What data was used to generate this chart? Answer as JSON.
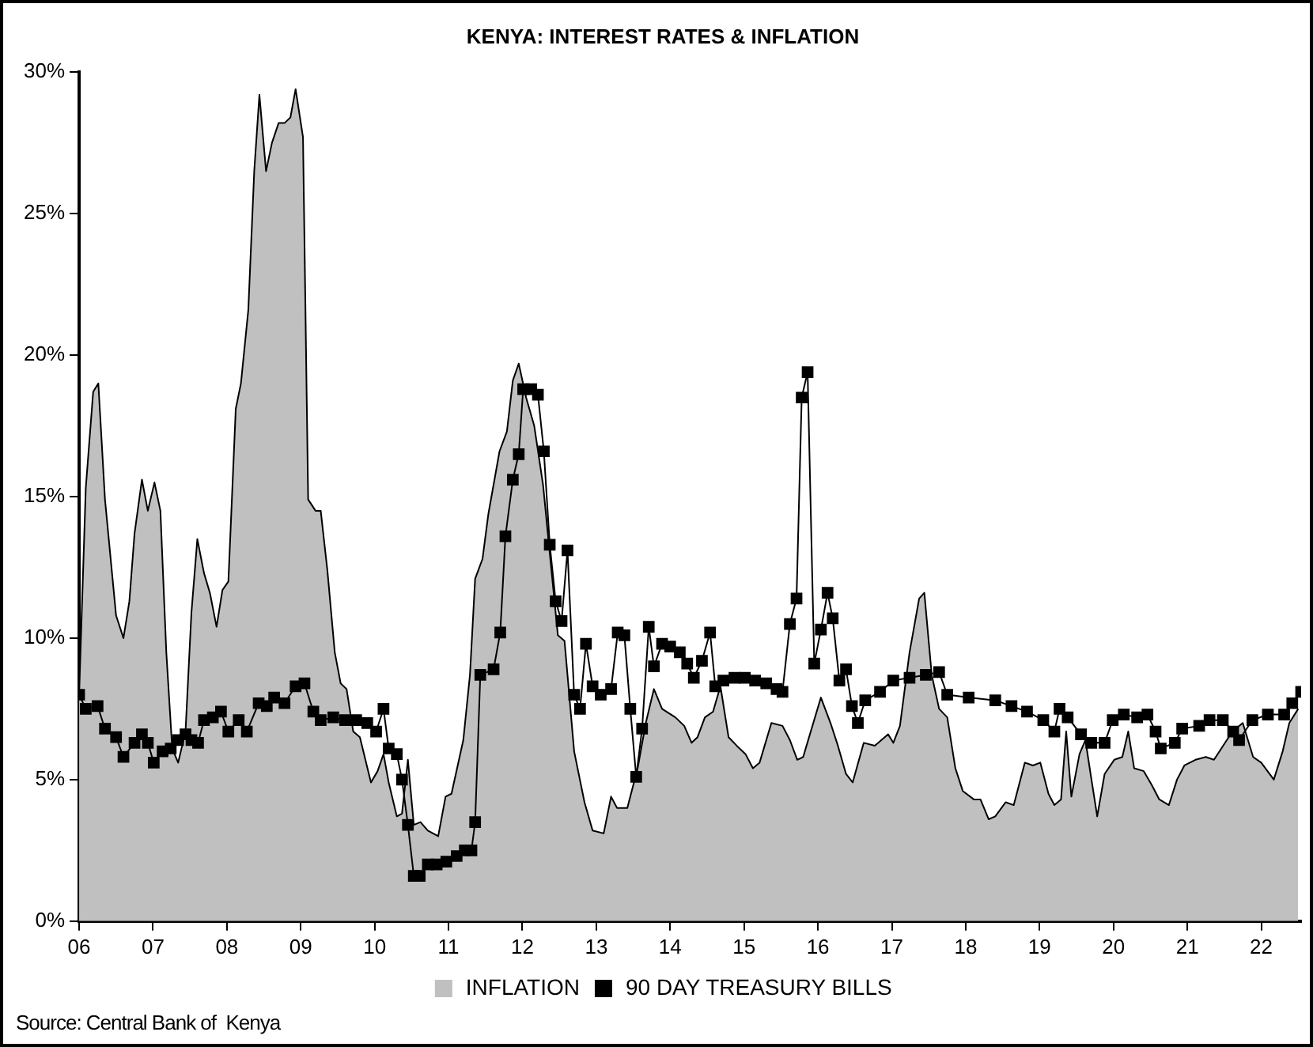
{
  "chart_data": {
    "type": "line",
    "title": "KENYA: INTEREST RATES & INFLATION",
    "xlim": [
      2006,
      2022.54
    ],
    "xticks": [
      {
        "value": 2006,
        "label": "06"
      },
      {
        "value": 2007,
        "label": "07"
      },
      {
        "value": 2008,
        "label": "08"
      },
      {
        "value": 2009,
        "label": "09"
      },
      {
        "value": 2010,
        "label": "10"
      },
      {
        "value": 2011,
        "label": "11"
      },
      {
        "value": 2012,
        "label": "12"
      },
      {
        "value": 2013,
        "label": "13"
      },
      {
        "value": 2014,
        "label": "14"
      },
      {
        "value": 2015,
        "label": "15"
      },
      {
        "value": 2016,
        "label": "16"
      },
      {
        "value": 2017,
        "label": "17"
      },
      {
        "value": 2018,
        "label": "18"
      },
      {
        "value": 2019,
        "label": "19"
      },
      {
        "value": 2020,
        "label": "20"
      },
      {
        "value": 2021,
        "label": "21"
      },
      {
        "value": 2022,
        "label": "22"
      }
    ],
    "ylim": [
      0,
      30
    ],
    "yticks": [
      {
        "value": 0,
        "label": "0%"
      },
      {
        "value": 5,
        "label": "5%"
      },
      {
        "value": 10,
        "label": "10%"
      },
      {
        "value": 15,
        "label": "15%"
      },
      {
        "value": 20,
        "label": "20%"
      },
      {
        "value": 25,
        "label": "25%"
      },
      {
        "value": 30,
        "label": "30%"
      }
    ],
    "grid": false,
    "legend": "bottom",
    "annotations": [
      "Source: Central Bank of  Kenya"
    ],
    "series": [
      {
        "name": "INFLATION",
        "type": "area",
        "color": "#c0c0c0",
        "marker": "none",
        "x": [
          2006.0,
          2006.09,
          2006.19,
          2006.26,
          2006.35,
          2006.5,
          2006.6,
          2006.68,
          2006.75,
          2006.85,
          2006.93,
          2007.02,
          2007.1,
          2007.18,
          2007.26,
          2007.34,
          2007.44,
          2007.52,
          2007.6,
          2007.69,
          2007.77,
          2007.86,
          2007.94,
          2008.02,
          2008.12,
          2008.19,
          2008.29,
          2008.37,
          2008.44,
          2008.53,
          2008.61,
          2008.7,
          2008.78,
          2008.86,
          2008.93,
          2009.03,
          2009.1,
          2009.2,
          2009.27,
          2009.36,
          2009.46,
          2009.54,
          2009.62,
          2009.71,
          2009.8,
          2009.95,
          2010.04,
          2010.12,
          2010.19,
          2010.3,
          2010.37,
          2010.45,
          2010.53,
          2010.62,
          2010.72,
          2010.86,
          2010.96,
          2011.04,
          2011.2,
          2011.29,
          2011.36,
          2011.46,
          2011.54,
          2011.69,
          2011.79,
          2011.87,
          2011.95,
          2012.05,
          2012.16,
          2012.28,
          2012.37,
          2012.48,
          2012.57,
          2012.7,
          2012.84,
          2012.95,
          2013.1,
          2013.2,
          2013.28,
          2013.42,
          2013.56,
          2013.67,
          2013.78,
          2013.89,
          2014.07,
          2014.19,
          2014.29,
          2014.37,
          2014.47,
          2014.58,
          2014.68,
          2014.79,
          2014.9,
          2015.02,
          2015.12,
          2015.21,
          2015.37,
          2015.52,
          2015.62,
          2015.72,
          2015.8,
          2016.04,
          2016.17,
          2016.27,
          2016.38,
          2016.47,
          2016.62,
          2016.77,
          2016.95,
          2017.02,
          2017.11,
          2017.24,
          2017.37,
          2017.44,
          2017.54,
          2017.64,
          2017.75,
          2017.86,
          2017.96,
          2018.11,
          2018.2,
          2018.31,
          2018.4,
          2018.54,
          2018.65,
          2018.8,
          2018.91,
          2019.01,
          2019.12,
          2019.2,
          2019.29,
          2019.36,
          2019.43,
          2019.54,
          2019.62,
          2019.69,
          2019.78,
          2019.88,
          2020.01,
          2020.12,
          2020.2,
          2020.28,
          2020.41,
          2020.52,
          2020.62,
          2020.75,
          2020.86,
          2020.96,
          2021.11,
          2021.25,
          2021.36,
          2021.46,
          2021.61,
          2021.75,
          2021.89,
          2022.0,
          2022.17,
          2022.29,
          2022.38,
          2022.5
        ],
        "values": [
          8.0,
          15.3,
          18.7,
          19.0,
          14.9,
          10.8,
          10.0,
          11.3,
          13.7,
          15.6,
          14.5,
          15.5,
          14.5,
          9.5,
          6.1,
          5.6,
          6.7,
          10.9,
          13.5,
          12.3,
          11.6,
          10.4,
          11.7,
          12.0,
          18.1,
          19.0,
          21.6,
          26.5,
          29.2,
          26.5,
          27.5,
          28.2,
          28.2,
          28.4,
          29.4,
          27.7,
          14.9,
          14.5,
          14.5,
          12.4,
          9.5,
          8.4,
          8.2,
          6.7,
          6.5,
          4.9,
          5.3,
          5.9,
          4.9,
          3.7,
          3.8,
          5.7,
          3.4,
          3.5,
          3.2,
          3.0,
          4.4,
          4.5,
          6.4,
          8.7,
          12.1,
          12.8,
          14.4,
          16.6,
          17.3,
          19.1,
          19.7,
          18.5,
          17.5,
          15.4,
          13.0,
          10.1,
          9.9,
          6.0,
          4.2,
          3.2,
          3.1,
          4.4,
          4.0,
          4.0,
          5.4,
          7.0,
          8.2,
          7.5,
          7.2,
          6.9,
          6.3,
          6.5,
          7.2,
          7.4,
          8.3,
          6.5,
          6.2,
          5.9,
          5.4,
          5.6,
          7.0,
          6.9,
          6.4,
          5.7,
          5.8,
          7.9,
          7.0,
          6.2,
          5.2,
          4.9,
          6.3,
          6.2,
          6.6,
          6.3,
          6.9,
          9.5,
          11.4,
          11.6,
          8.7,
          7.5,
          7.2,
          5.4,
          4.6,
          4.3,
          4.3,
          3.6,
          3.7,
          4.2,
          4.1,
          5.6,
          5.5,
          5.6,
          4.5,
          4.1,
          4.3,
          6.7,
          4.4,
          5.9,
          6.4,
          5.2,
          3.7,
          5.2,
          5.7,
          5.8,
          6.7,
          5.4,
          5.3,
          4.8,
          4.3,
          4.1,
          5.0,
          5.5,
          5.7,
          5.8,
          5.7,
          6.1,
          6.7,
          7.0,
          5.8,
          5.6,
          5.0,
          6.0,
          7.0,
          7.5
        ]
      },
      {
        "name": "90 DAY TREASURY BILLS",
        "type": "line",
        "color": "#000000",
        "marker": "square",
        "x": [
          2006.0,
          2006.09,
          2006.25,
          2006.35,
          2006.5,
          2006.6,
          2006.75,
          2006.85,
          2006.93,
          2007.01,
          2007.13,
          2007.24,
          2007.34,
          2007.44,
          2007.52,
          2007.61,
          2007.69,
          2007.81,
          2007.92,
          2008.02,
          2008.16,
          2008.27,
          2008.43,
          2008.54,
          2008.64,
          2008.78,
          2008.93,
          2009.05,
          2009.17,
          2009.27,
          2009.44,
          2009.6,
          2009.75,
          2009.9,
          2010.02,
          2010.12,
          2010.19,
          2010.3,
          2010.37,
          2010.45,
          2010.53,
          2010.61,
          2010.72,
          2010.84,
          2010.97,
          2011.11,
          2011.22,
          2011.31,
          2011.36,
          2011.43,
          2011.61,
          2011.7,
          2011.77,
          2011.87,
          2011.95,
          2012.01,
          2012.12,
          2012.21,
          2012.29,
          2012.37,
          2012.45,
          2012.53,
          2012.61,
          2012.7,
          2012.78,
          2012.86,
          2012.95,
          2013.06,
          2013.2,
          2013.29,
          2013.38,
          2013.46,
          2013.54,
          2013.62,
          2013.71,
          2013.78,
          2013.89,
          2014.0,
          2014.13,
          2014.23,
          2014.32,
          2014.43,
          2014.54,
          2014.61,
          2014.72,
          2014.87,
          2015.01,
          2015.15,
          2015.3,
          2015.44,
          2015.52,
          2015.62,
          2015.71,
          2015.78,
          2015.86,
          2015.95,
          2016.04,
          2016.13,
          2016.2,
          2016.29,
          2016.38,
          2016.46,
          2016.54,
          2016.64,
          2016.84,
          2017.02,
          2017.24,
          2017.46,
          2017.64,
          2017.75,
          2018.04,
          2018.4,
          2018.62,
          2018.83,
          2019.05,
          2019.2,
          2019.27,
          2019.38,
          2019.56,
          2019.7,
          2019.88,
          2019.99,
          2020.14,
          2020.32,
          2020.46,
          2020.57,
          2020.64,
          2020.83,
          2020.93,
          2021.16,
          2021.3,
          2021.48,
          2021.62,
          2021.7,
          2021.88,
          2022.09,
          2022.31,
          2022.42,
          2022.54
        ],
        "values": [
          8.0,
          7.5,
          7.6,
          6.8,
          6.5,
          5.8,
          6.3,
          6.6,
          6.3,
          5.6,
          6.0,
          6.1,
          6.4,
          6.6,
          6.4,
          6.3,
          7.1,
          7.2,
          7.4,
          6.7,
          7.1,
          6.7,
          7.7,
          7.6,
          7.9,
          7.7,
          8.3,
          8.4,
          7.4,
          7.1,
          7.2,
          7.1,
          7.1,
          7.0,
          6.7,
          7.5,
          6.1,
          5.9,
          5.0,
          3.4,
          1.6,
          1.6,
          2.0,
          2.0,
          2.1,
          2.3,
          2.5,
          2.5,
          3.5,
          8.7,
          8.9,
          10.2,
          13.6,
          15.6,
          16.5,
          18.8,
          18.8,
          18.6,
          16.6,
          13.3,
          11.3,
          10.6,
          13.1,
          8.0,
          7.5,
          9.8,
          8.3,
          8.0,
          8.2,
          10.2,
          10.1,
          7.5,
          5.1,
          6.8,
          10.4,
          9.0,
          9.8,
          9.7,
          9.5,
          9.1,
          8.6,
          9.2,
          10.2,
          8.3,
          8.5,
          8.6,
          8.6,
          8.5,
          8.4,
          8.2,
          8.1,
          10.5,
          11.4,
          18.5,
          19.4,
          9.1,
          10.3,
          11.6,
          10.7,
          8.5,
          8.9,
          7.6,
          7.0,
          7.8,
          8.1,
          8.5,
          8.6,
          8.7,
          8.8,
          8.0,
          7.9,
          7.8,
          7.6,
          7.4,
          7.1,
          6.7,
          7.5,
          7.2,
          6.6,
          6.3,
          6.3,
          7.1,
          7.3,
          7.2,
          7.3,
          6.7,
          6.1,
          6.3,
          6.8,
          6.9,
          7.1,
          7.1,
          6.7,
          6.4,
          7.1,
          7.3,
          7.3,
          7.7,
          8.1
        ]
      }
    ]
  }
}
